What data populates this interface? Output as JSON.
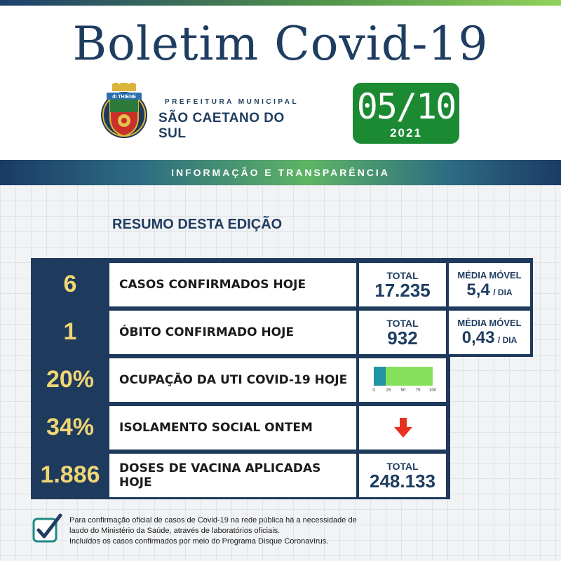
{
  "header": {
    "title": "Boletim Covid-19",
    "org_small": "PREFEITURA MUNICIPAL",
    "org_big": "SÃO CAETANO DO SUL",
    "crest_banner": "di THIENE",
    "date": "05/10",
    "year": "2021",
    "band_text": "INFORMAÇÃO E TRANSPARÊNCIA"
  },
  "summary": {
    "heading": "RESUMO DESTA EDIÇÃO",
    "rows": [
      {
        "value": "6",
        "label": "CASOS CONFIRMADOS HOJE",
        "total_label": "TOTAL",
        "total_value": "17.235",
        "media_label": "MÉDIA MÓVEL",
        "media_value": "5,4",
        "media_unit": "/ DIA"
      },
      {
        "value": "1",
        "label": "ÓBITO CONFIRMADO HOJE",
        "total_label": "TOTAL",
        "total_value": "932",
        "media_label": "MÉDIA MÓVEL",
        "media_value": "0,43",
        "media_unit": "/ DIA"
      },
      {
        "value": "20%",
        "label": "OCUPAÇÃO DA UTI COVID-19 HOJE"
      },
      {
        "value": "34%",
        "label": "ISOLAMENTO SOCIAL ONTEM"
      },
      {
        "value": "1.886",
        "label": "DOSES DE VACINA APLICADAS HOJE",
        "total_label": "TOTAL",
        "total_value": "248.133"
      }
    ],
    "gauge": {
      "fill_percent": 20,
      "ticks": [
        "0",
        "25",
        "50",
        "75",
        "100"
      ]
    },
    "isolation_trend": "down-arrow-icon"
  },
  "footnote": [
    "Para confirmação oficial de casos de Covid-19 na rede pública há a necessidade de",
    "laudo do Ministério da Saúde, através de laboratórios oficiais.",
    "Incluídos os casos confirmados por meio do Programa Disque Coronavírus."
  ],
  "colors": {
    "navy": "#1e3a5c",
    "yellow": "#f0d675",
    "green": "#1b8a33",
    "gauge_fill": "#2193a4",
    "gauge_track": "#86e05b",
    "arrow": "#e8321f"
  }
}
